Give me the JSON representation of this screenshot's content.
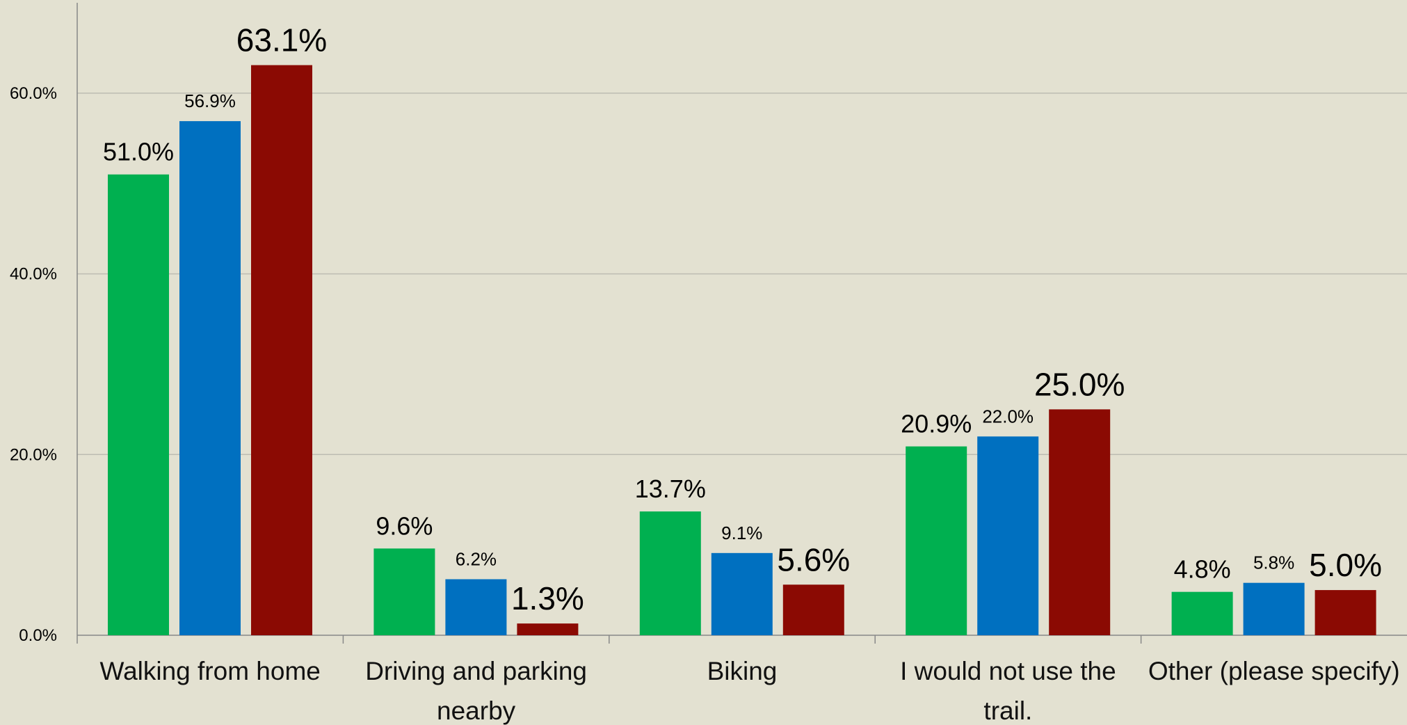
{
  "chart_data": {
    "type": "bar",
    "categories": [
      "Walking from home",
      "Driving and parking nearby",
      "Biking",
      "I would not use the trail.",
      "Other (please specify)"
    ],
    "series": [
      {
        "color": "#00b050",
        "values": [
          51.0,
          9.6,
          13.7,
          20.9,
          4.8
        ],
        "value_labels": [
          "51.0%",
          "9.6%",
          "13.7%",
          "20.9%",
          "4.8%"
        ]
      },
      {
        "color": "#0070c0",
        "values": [
          56.9,
          6.2,
          9.1,
          22.0,
          5.8
        ],
        "value_labels": [
          "56.9%",
          "6.2%",
          "9.1%",
          "22.0%",
          "5.8%"
        ]
      },
      {
        "color": "#8b0a03",
        "values": [
          63.1,
          1.3,
          5.6,
          25.0,
          5.0
        ],
        "value_labels": [
          "63.1%",
          "1.3%",
          "5.6%",
          "25.0%",
          "5.0%"
        ]
      }
    ],
    "ylim": [
      0,
      70
    ],
    "yticks": [
      {
        "value": 0,
        "label": "0.0%"
      },
      {
        "value": 20,
        "label": "20.0%"
      },
      {
        "value": 40,
        "label": "40.0%"
      },
      {
        "value": 60,
        "label": "60.0%"
      }
    ],
    "grid": true
  }
}
